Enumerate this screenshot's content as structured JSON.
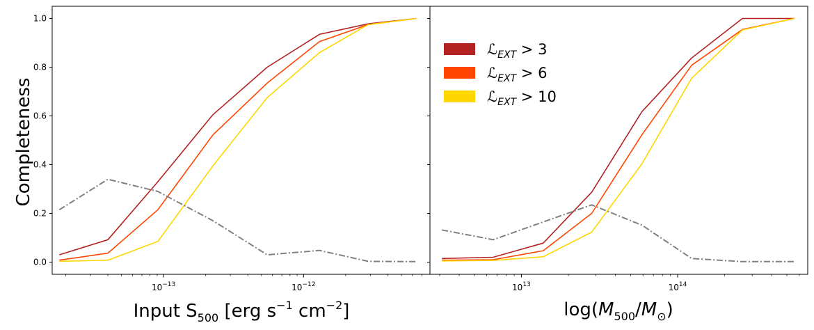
{
  "chart_data": [
    {
      "type": "line",
      "name": "flux-completeness",
      "xscale": "log",
      "xlim": [
        1.6e-14,
        8e-12
      ],
      "ylim": [
        -0.05,
        1.05
      ],
      "ylabel": "Completeness",
      "xlabel": {
        "main": "Input S",
        "sub": "500",
        "unit_a": " [erg s",
        "exp_a": "−1",
        "unit_b": " cm",
        "exp_b": "−2",
        "close": "]"
      },
      "yticks": [
        0.0,
        0.2,
        0.4,
        0.6,
        0.8,
        1.0
      ],
      "ytick_labels": [
        "0.0",
        "0.2",
        "0.4",
        "0.6",
        "0.8",
        "1.0"
      ],
      "xticks": [
        {
          "value": 1e-13,
          "base": "10",
          "exp": "−13"
        },
        {
          "value": 1e-12,
          "base": "10",
          "exp": "−12"
        }
      ],
      "x": [
        1.8e-14,
        4e-14,
        9.1e-14,
        2.25e-13,
        5.5e-13,
        1.3e-12,
        2.9e-12,
        6.4e-12
      ],
      "series": [
        {
          "name": "L_EXT > 3",
          "color": "#b22222",
          "style": "solid",
          "values": [
            0.03,
            0.092,
            0.33,
            0.605,
            0.8,
            0.935,
            0.978,
            1.0
          ]
        },
        {
          "name": "L_EXT > 6",
          "color": "#ff4500",
          "style": "solid",
          "values": [
            0.008,
            0.037,
            0.215,
            0.522,
            0.735,
            0.905,
            0.975,
            1.0
          ]
        },
        {
          "name": "L_EXT > 10",
          "color": "#ffd700",
          "style": "solid",
          "values": [
            0.003,
            0.008,
            0.085,
            0.395,
            0.675,
            0.86,
            0.975,
            1.0
          ]
        },
        {
          "name": "reference",
          "color": "#808080",
          "style": "dashdot",
          "values": [
            0.215,
            0.34,
            0.29,
            0.17,
            0.03,
            0.048,
            0.003,
            0.002
          ]
        }
      ]
    },
    {
      "type": "line",
      "name": "mass-completeness",
      "xscale": "log",
      "xlim": [
        2600000000000.0,
        680000000000000.0
      ],
      "ylim": [
        -0.05,
        1.05
      ],
      "xlabel": {
        "pre": "log(",
        "m1": "M",
        "sub1": "500",
        "slash": "/",
        "m2": "M",
        "sub2": "⊙",
        "close": ")"
      },
      "xticks": [
        {
          "value": 10000000000000.0,
          "base": "10",
          "exp": "13"
        },
        {
          "value": 100000000000000.0,
          "base": "10",
          "exp": "14"
        }
      ],
      "x": [
        3100000000000.0,
        6600000000000.0,
        13800000000000.0,
        28200000000000.0,
        59000000000000.0,
        123000000000000.0,
        260000000000000.0,
        560000000000000.0
      ],
      "series": [
        {
          "name": "L_EXT > 3",
          "color": "#b22222",
          "style": "solid",
          "values": [
            0.015,
            0.02,
            0.078,
            0.287,
            0.617,
            0.838,
            1.0,
            1.0
          ]
        },
        {
          "name": "L_EXT > 6",
          "color": "#ff4500",
          "style": "solid",
          "values": [
            0.008,
            0.01,
            0.047,
            0.2,
            0.522,
            0.808,
            0.955,
            1.0
          ]
        },
        {
          "name": "L_EXT > 10",
          "color": "#ffd700",
          "style": "solid",
          "values": [
            0.005,
            0.007,
            0.022,
            0.123,
            0.403,
            0.755,
            0.953,
            1.0
          ]
        },
        {
          "name": "reference",
          "color": "#808080",
          "style": "dashdot",
          "values": [
            0.132,
            0.092,
            0.165,
            0.235,
            0.152,
            0.015,
            0.002,
            0.002
          ]
        }
      ]
    }
  ],
  "legend": {
    "placement": "upper-left of right panel",
    "entries": [
      {
        "sym": "ℒ",
        "sub": "EXT",
        "rel": " > ",
        "val": "3",
        "color": "#b22222"
      },
      {
        "sym": "ℒ",
        "sub": "EXT",
        "rel": " > ",
        "val": "6",
        "color": "#ff4500"
      },
      {
        "sym": "ℒ",
        "sub": "EXT",
        "rel": " > ",
        "val": "10",
        "color": "#ffd700"
      }
    ]
  }
}
